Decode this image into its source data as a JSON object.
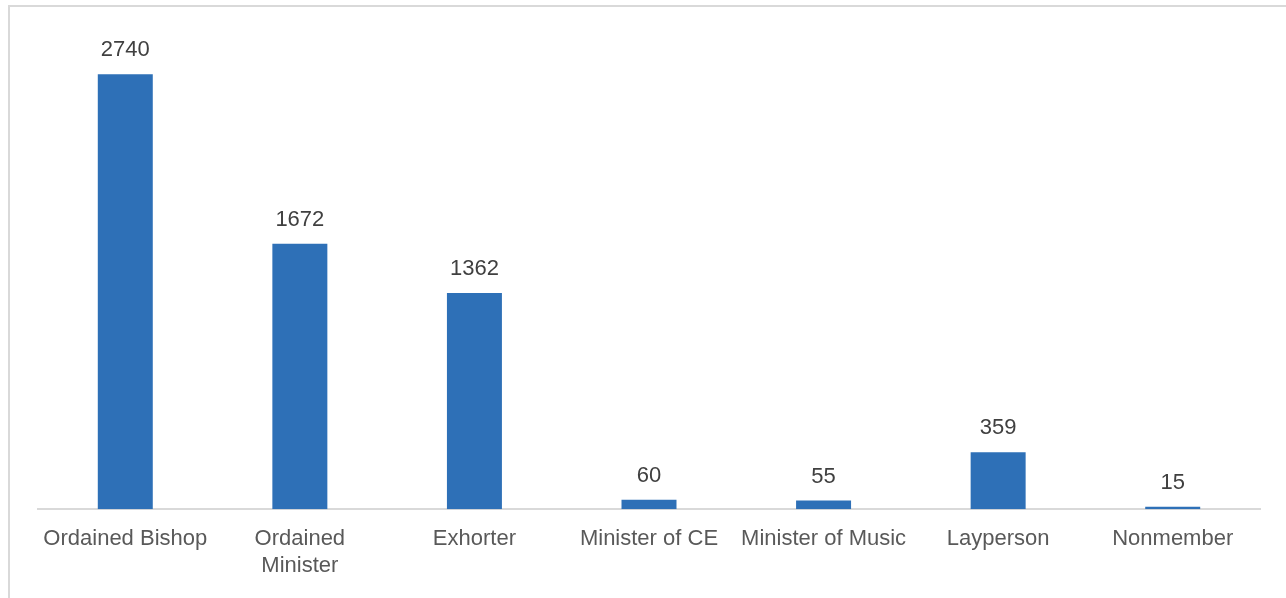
{
  "chart_data": {
    "type": "bar",
    "categories": [
      "Ordained Bishop",
      "Ordained Minister",
      "Exhorter",
      "Minister of CE",
      "Minister of Music",
      "Layperson",
      "Nonmember"
    ],
    "values": [
      2740,
      1672,
      1362,
      60,
      55,
      359,
      15
    ],
    "color": "#2e70b7",
    "data_labels": true
  }
}
